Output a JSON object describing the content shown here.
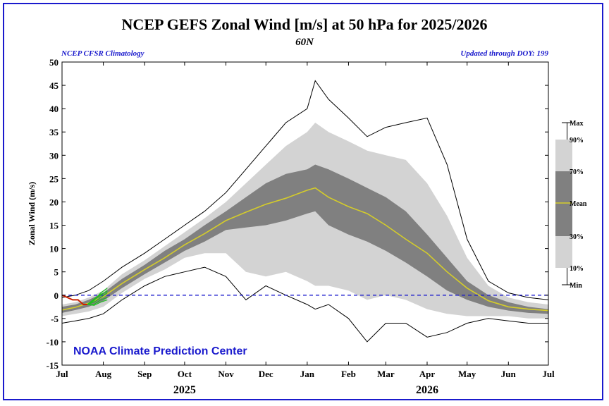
{
  "chart_data": {
    "type": "area",
    "title": "NCEP GEFS Zonal Wind [m/s] at 50 hPa for 2025/2026",
    "subtitle": "60N",
    "left_note": "NCEP CFSR Climatology",
    "right_note": "Updated through DOY: 199",
    "credit": "NOAA Climate Prediction Center",
    "ylabel": "Zonal Wind (m/s)",
    "ylim": [
      -15,
      50
    ],
    "yticks": [
      -15,
      -10,
      -5,
      0,
      5,
      10,
      15,
      20,
      25,
      30,
      35,
      40,
      45,
      50
    ],
    "xlim": [
      0,
      365
    ],
    "x_ticks": [
      {
        "day": 0,
        "label": "Jul"
      },
      {
        "day": 31,
        "label": "Aug"
      },
      {
        "day": 62,
        "label": "Sep"
      },
      {
        "day": 92,
        "label": "Oct"
      },
      {
        "day": 123,
        "label": "Nov"
      },
      {
        "day": 153,
        "label": "Dec"
      },
      {
        "day": 184,
        "label": "Jan"
      },
      {
        "day": 215,
        "label": "Feb"
      },
      {
        "day": 243,
        "label": "Mar"
      },
      {
        "day": 274,
        "label": "Apr"
      },
      {
        "day": 304,
        "label": "May"
      },
      {
        "day": 335,
        "label": "Jun"
      },
      {
        "day": 365,
        "label": "Jul"
      }
    ],
    "year_labels": [
      {
        "day": 92,
        "label": "2025"
      },
      {
        "day": 274,
        "label": "2026"
      }
    ],
    "zero_line": 0,
    "colors": {
      "max_min": "#000000",
      "band_10_90": "#d3d3d3",
      "band_30_70": "#808080",
      "mean": "#d4cc2a",
      "observed": "#cc2200",
      "forecast": "#22bb22",
      "zero": "#1a1acd"
    },
    "legend": {
      "placement": "right",
      "items": [
        "Max",
        "90%",
        "70%",
        "Mean",
        "30%",
        "10%",
        "Min"
      ]
    },
    "days": [
      0,
      10,
      20,
      31,
      45,
      62,
      77,
      92,
      107,
      123,
      138,
      153,
      168,
      184,
      190,
      200,
      215,
      229,
      243,
      258,
      274,
      289,
      304,
      320,
      335,
      350,
      365
    ],
    "series": [
      {
        "name": "Max",
        "values": [
          -0.5,
          0,
          1,
          3,
          6,
          9,
          12,
          15,
          18,
          22,
          27,
          32,
          37,
          40,
          46,
          42,
          38,
          34,
          36,
          37,
          38,
          28,
          12,
          3,
          0.5,
          -0.5,
          -1
        ]
      },
      {
        "name": "90%",
        "values": [
          -2,
          -1.5,
          -0.5,
          1,
          4.5,
          7.5,
          10.5,
          13.5,
          16.5,
          20,
          24,
          28,
          32,
          35,
          37,
          35,
          33,
          31,
          30,
          29,
          24,
          17,
          8,
          2,
          -0.5,
          -1.5,
          -2
        ]
      },
      {
        "name": "70%",
        "values": [
          -2.5,
          -2,
          -1,
          0.5,
          3.5,
          6.5,
          9.5,
          12,
          15,
          18,
          21,
          24,
          26,
          27,
          28,
          27,
          25,
          23,
          21,
          18,
          13,
          8,
          3,
          0,
          -1.5,
          -2.5,
          -3
        ]
      },
      {
        "name": "Mean",
        "values": [
          -3.2,
          -2.6,
          -1.7,
          -0.3,
          2.5,
          5.5,
          8,
          10.8,
          13.2,
          16,
          17.8,
          19.5,
          20.8,
          22.5,
          23,
          21,
          19,
          17.5,
          15,
          12,
          9,
          5,
          1.5,
          -1.2,
          -2.5,
          -3,
          -3.3
        ]
      },
      {
        "name": "30%",
        "values": [
          -3.8,
          -3.2,
          -2.5,
          -1.2,
          1.5,
          4.5,
          7,
          9.5,
          11.5,
          14,
          14.5,
          15,
          16,
          17.5,
          18,
          15,
          13,
          11.5,
          9.5,
          7,
          4,
          1,
          -1,
          -2.5,
          -3.3,
          -3.8,
          -4
        ]
      },
      {
        "name": "10%",
        "values": [
          -4.5,
          -4,
          -3.5,
          -2.5,
          0.5,
          3.5,
          5.5,
          8,
          9,
          9,
          5,
          4,
          5,
          3,
          2,
          2,
          1,
          -1,
          0,
          -1,
          -3,
          -4,
          -4.5,
          -4.5,
          -4.5,
          -5,
          -5
        ]
      },
      {
        "name": "Min",
        "values": [
          -6,
          -5.5,
          -5,
          -4,
          -1,
          2,
          4,
          5,
          6,
          4,
          -1,
          2,
          0,
          -2,
          -3,
          -2,
          -5,
          -10,
          -6,
          -6,
          -9,
          -8,
          -6,
          -5,
          -5.5,
          -6,
          -6
        ]
      }
    ],
    "observed": {
      "name": "observed",
      "days": [
        0,
        4,
        8,
        12,
        16,
        19
      ],
      "values": [
        0,
        -0.5,
        -1,
        -1,
        -2,
        -2
      ]
    },
    "forecasts": [
      {
        "days": [
          19,
          24,
          29,
          34
        ],
        "values": [
          -2,
          -1,
          0,
          1
        ]
      },
      {
        "days": [
          19,
          24,
          29,
          34
        ],
        "values": [
          -2,
          -1.5,
          -0.5,
          0.5
        ]
      },
      {
        "days": [
          19,
          24,
          29,
          34
        ],
        "values": [
          -2,
          -2,
          -1,
          -0.5
        ]
      },
      {
        "days": [
          19,
          24,
          29,
          34
        ],
        "values": [
          -2,
          -1.2,
          0.5,
          1.5
        ]
      },
      {
        "days": [
          19,
          24,
          29,
          34
        ],
        "values": [
          -2,
          -2.2,
          -1.5,
          -1
        ]
      },
      {
        "days": [
          19,
          24,
          29,
          34
        ],
        "values": [
          -2,
          -0.8,
          0.2,
          0.8
        ]
      }
    ]
  }
}
